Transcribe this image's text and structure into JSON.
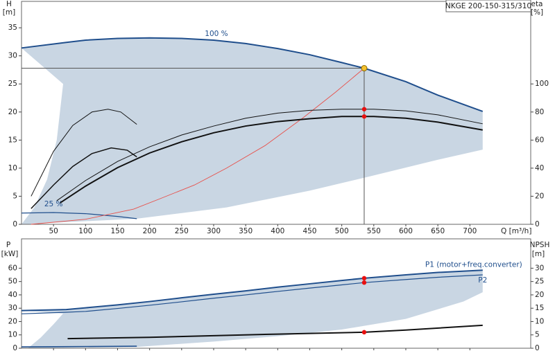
{
  "chart_data": [
    {
      "type": "line",
      "title": "NKGE 200-150-315/310",
      "y_label": "H",
      "y_unit": "[m]",
      "y2_label": "eta",
      "y2_unit": "[%]",
      "x_label": "Q [m³/h]",
      "xlim": [
        0,
        795
      ],
      "xticks": [
        50,
        100,
        150,
        200,
        250,
        300,
        350,
        400,
        450,
        500,
        550,
        600,
        650,
        700
      ],
      "ylim": [
        0,
        39.7
      ],
      "yticks": [
        0,
        5,
        10,
        15,
        20,
        25,
        30,
        35
      ],
      "y2lim": [
        0,
        158.8
      ],
      "y2ticks": [
        0,
        20,
        40,
        60,
        80,
        100
      ],
      "area": {
        "color": "#c9d6e3",
        "x": [
          0,
          70,
          100,
          150,
          200,
          250,
          300,
          350,
          400,
          450,
          500,
          535,
          600,
          650,
          720,
          720,
          650,
          550,
          450,
          320,
          180,
          0,
          20,
          40,
          55,
          65
        ],
        "y": [
          31.4,
          32.4,
          32.8,
          33.1,
          33.2,
          33.1,
          32.8,
          32.2,
          31.3,
          30.2,
          28.8,
          27.8,
          25.4,
          23,
          20.1,
          13.3,
          11.5,
          8.7,
          6,
          3,
          1,
          0,
          3,
          8,
          15,
          25
        ]
      },
      "series": [
        {
          "name": "100 %",
          "color": "#1f4e8c",
          "width": 2,
          "x": [
            0,
            70,
            100,
            150,
            200,
            250,
            300,
            350,
            400,
            450,
            500,
            535,
            600,
            650,
            720
          ],
          "values": [
            31.4,
            32.4,
            32.8,
            33.1,
            33.2,
            33.1,
            32.8,
            32.2,
            31.3,
            30.2,
            28.8,
            27.8,
            25.4,
            23,
            20.1
          ]
        },
        {
          "name": "25 %",
          "color": "#1f4e8c",
          "width": 1.2,
          "x": [
            0,
            50,
            100,
            150,
            180
          ],
          "values": [
            2,
            2.1,
            1.9,
            1.4,
            1
          ]
        },
        {
          "color": "#e8504a",
          "width": 0.9,
          "x": [
            15,
            100,
            175,
            215,
            270,
            320,
            380,
            440,
            490,
            535
          ],
          "values": [
            0,
            0.9,
            2.7,
            4.5,
            7,
            10,
            14,
            19,
            23.5,
            27.8
          ]
        },
        {
          "color": "#111",
          "width": 1,
          "axis": "y2",
          "x": [
            55,
            100,
            150,
            200,
            250,
            300,
            350,
            400,
            450,
            500,
            550,
            600,
            650,
            720
          ],
          "values": [
            16.8,
            31.2,
            44.8,
            55.2,
            63.6,
            70,
            75.6,
            79.2,
            81.2,
            82,
            82,
            80.8,
            78,
            71.6
          ]
        },
        {
          "color": "#111",
          "width": 2,
          "axis": "y2",
          "x": [
            60,
            100,
            150,
            200,
            250,
            300,
            350,
            400,
            450,
            500,
            550,
            600,
            650,
            720
          ],
          "values": [
            15.2,
            27.2,
            40.4,
            50.8,
            58.8,
            65.2,
            70,
            73.2,
            75.2,
            76.8,
            76.8,
            75.6,
            72.8,
            67.2
          ]
        },
        {
          "color": "#111",
          "width": 1,
          "axis": "y2",
          "x": [
            15,
            50,
            80,
            110,
            135,
            155,
            180
          ],
          "values": [
            20,
            52,
            70.4,
            80,
            82,
            80,
            71.2
          ]
        },
        {
          "color": "#111",
          "width": 1.5,
          "axis": "y2",
          "x": [
            15,
            50,
            80,
            110,
            140,
            165,
            180
          ],
          "values": [
            11.2,
            28,
            41.2,
            50.4,
            54.4,
            52.8,
            48
          ]
        }
      ],
      "duty_point": {
        "x": 535,
        "y": 27.8,
        "color": "#f5c12e"
      },
      "points": [
        {
          "x": 535,
          "y": 82,
          "axis": "y2",
          "color": "#e81010"
        },
        {
          "x": 535,
          "y": 76.8,
          "axis": "y2",
          "color": "#e81010"
        }
      ]
    },
    {
      "type": "line",
      "y_label": "P",
      "y_unit": "[kW]",
      "y2_label": "NPSH",
      "y2_unit": "[m]",
      "xlim": [
        0,
        795
      ],
      "xticks": [
        50,
        100,
        150,
        200,
        250,
        300,
        350,
        400,
        450,
        500,
        550,
        600,
        650,
        700
      ],
      "ylim": [
        0,
        82
      ],
      "yticks": [
        0,
        10,
        20,
        30,
        40,
        50,
        60
      ],
      "y2lim": [
        0,
        41
      ],
      "y2ticks": [
        0,
        5,
        10,
        15,
        20,
        25,
        30
      ],
      "area": {
        "color": "#c9d6e3",
        "x": [
          0,
          70,
          100,
          150,
          200,
          250,
          300,
          350,
          400,
          450,
          500,
          535,
          600,
          650,
          720,
          720,
          690,
          600,
          500,
          400,
          300,
          180,
          10,
          30,
          50,
          65
        ],
        "y": [
          28.2,
          29,
          30.3,
          32.5,
          35,
          37.8,
          40.5,
          43,
          45.8,
          48.3,
          50.8,
          52.5,
          55,
          56.8,
          58.5,
          42,
          35,
          22,
          14,
          9,
          5,
          1,
          0,
          8,
          18,
          26
        ]
      },
      "series": [
        {
          "name": "P1 (motor+freq.converter)",
          "color": "#1f4e8c",
          "width": 2,
          "x": [
            0,
            70,
            100,
            150,
            200,
            250,
            300,
            350,
            400,
            450,
            500,
            535,
            600,
            650,
            720
          ],
          "values": [
            28.2,
            29,
            30.3,
            32.5,
            35,
            37.8,
            40.5,
            43,
            45.8,
            48.3,
            50.8,
            52.5,
            55,
            56.8,
            58.5
          ]
        },
        {
          "name": "P2",
          "color": "#1f4e8c",
          "width": 1.2,
          "x": [
            0,
            70,
            100,
            150,
            200,
            250,
            300,
            350,
            400,
            450,
            500,
            535,
            600,
            650,
            720
          ],
          "values": [
            25.8,
            27,
            27.6,
            29.8,
            32.2,
            34.8,
            37.5,
            40,
            42.6,
            45.1,
            47.5,
            49.2,
            51.5,
            53.2,
            55
          ]
        },
        {
          "color": "#1f4e8c",
          "width": 1.6,
          "x": [
            0,
            180
          ],
          "values": [
            1,
            1.5
          ]
        },
        {
          "color": "#111",
          "width": 2,
          "axis": "y2",
          "x": [
            72,
            200,
            300,
            400,
            535,
            600,
            720
          ],
          "values": [
            3.6,
            4.1,
            4.7,
            5.3,
            6,
            6.8,
            8.6
          ]
        }
      ],
      "points": [
        {
          "x": 535,
          "y": 52.5,
          "color": "#e81010"
        },
        {
          "x": 535,
          "y": 49.2,
          "color": "#e81010"
        },
        {
          "x": 535,
          "y": 6,
          "axis": "y2",
          "color": "#e81010"
        }
      ]
    }
  ]
}
